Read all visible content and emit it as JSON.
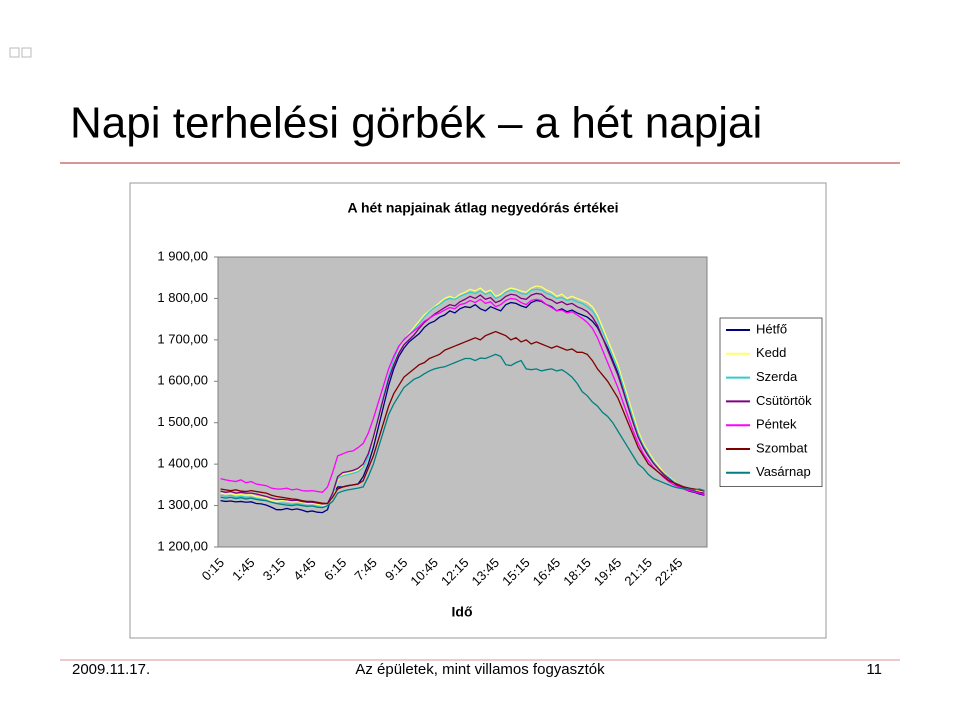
{
  "slide": {
    "title": "Napi terhelési görbék – a hét napjai",
    "date": "2009.11.17.",
    "footer": "Az épületek, mint villamos fogyasztók",
    "page_number": "11"
  },
  "chart_data": {
    "type": "line",
    "title": "A hét napjainak átlag negyedórás értékei",
    "x_label": "Idő",
    "categories": [
      "0:15",
      null,
      null,
      null,
      null,
      null,
      "1:45",
      null,
      null,
      null,
      null,
      null,
      "3:15",
      null,
      null,
      null,
      null,
      null,
      "4:45",
      null,
      null,
      null,
      null,
      null,
      "6:15",
      null,
      null,
      null,
      null,
      null,
      "7:45",
      null,
      null,
      null,
      null,
      null,
      "9:15",
      null,
      null,
      null,
      null,
      null,
      "10:45",
      null,
      null,
      null,
      null,
      null,
      "12:15",
      null,
      null,
      null,
      null,
      null,
      "13:45",
      null,
      null,
      null,
      null,
      null,
      "15:15",
      null,
      null,
      null,
      null,
      null,
      "16:45",
      null,
      null,
      null,
      null,
      null,
      "18:15",
      null,
      null,
      null,
      null,
      null,
      "19:45",
      null,
      null,
      null,
      null,
      null,
      "21:15",
      null,
      null,
      null,
      null,
      null,
      "22:45",
      null,
      null,
      null,
      null,
      null
    ],
    "ylim": [
      1200,
      1900
    ],
    "yticks": [
      {
        "value": 1200,
        "label": "1 200,00"
      },
      {
        "value": 1300,
        "label": "1 300,00"
      },
      {
        "value": 1400,
        "label": "1 400,00"
      },
      {
        "value": 1500,
        "label": "1 500,00"
      },
      {
        "value": 1600,
        "label": "1 600,00"
      },
      {
        "value": 1700,
        "label": "1 700,00"
      },
      {
        "value": 1800,
        "label": "1 800,00"
      },
      {
        "value": 1900,
        "label": "1 900,00"
      }
    ],
    "grid": false,
    "legend": "right",
    "plot_background": "#c0c0c0",
    "series": [
      {
        "name": "Hétfő",
        "color": "#000080",
        "values": [
          1312,
          1310,
          1311,
          1309,
          1310,
          1308,
          1309,
          1305,
          1304,
          1301,
          1296,
          1290,
          1290,
          1293,
          1290,
          1292,
          1289,
          1285,
          1287,
          1284,
          1283,
          1290,
          1330,
          1345,
          1345,
          1348,
          1350,
          1352,
          1370,
          1400,
          1440,
          1490,
          1540,
          1590,
          1630,
          1660,
          1680,
          1695,
          1705,
          1715,
          1730,
          1740,
          1745,
          1755,
          1760,
          1770,
          1765,
          1775,
          1780,
          1778,
          1785,
          1775,
          1770,
          1780,
          1775,
          1770,
          1785,
          1790,
          1788,
          1782,
          1778,
          1790,
          1795,
          1793,
          1785,
          1780,
          1770,
          1775,
          1768,
          1772,
          1765,
          1760,
          1755,
          1745,
          1730,
          1705,
          1680,
          1650,
          1620,
          1585,
          1545,
          1505,
          1470,
          1440,
          1420,
          1405,
          1390,
          1375,
          1365,
          1355,
          1345,
          1340,
          1335,
          1332,
          1328,
          1325
        ]
      },
      {
        "name": "Kedd",
        "color": "#ffff66",
        "values": [
          1330,
          1328,
          1329,
          1326,
          1327,
          1325,
          1326,
          1322,
          1320,
          1318,
          1312,
          1310,
          1312,
          1311,
          1309,
          1310,
          1308,
          1305,
          1306,
          1303,
          1301,
          1300,
          1320,
          1360,
          1375,
          1378,
          1380,
          1385,
          1395,
          1420,
          1460,
          1510,
          1560,
          1610,
          1650,
          1680,
          1700,
          1715,
          1730,
          1745,
          1760,
          1770,
          1780,
          1790,
          1800,
          1805,
          1800,
          1810,
          1815,
          1822,
          1818,
          1825,
          1815,
          1820,
          1805,
          1810,
          1820,
          1825,
          1822,
          1818,
          1815,
          1825,
          1830,
          1828,
          1820,
          1815,
          1805,
          1810,
          1800,
          1805,
          1800,
          1795,
          1790,
          1780,
          1760,
          1730,
          1700,
          1670,
          1640,
          1600,
          1560,
          1520,
          1480,
          1450,
          1430,
          1410,
          1395,
          1380,
          1370,
          1360,
          1350,
          1345,
          1340,
          1338,
          1335,
          1330
        ]
      },
      {
        "name": "Szerda",
        "color": "#33cccc",
        "values": [
          1325,
          1322,
          1325,
          1320,
          1322,
          1320,
          1320,
          1317,
          1315,
          1312,
          1308,
          1305,
          1306,
          1305,
          1303,
          1305,
          1302,
          1300,
          1300,
          1298,
          1296,
          1298,
          1325,
          1365,
          1372,
          1375,
          1378,
          1382,
          1392,
          1418,
          1465,
          1515,
          1565,
          1612,
          1652,
          1682,
          1702,
          1712,
          1725,
          1740,
          1755,
          1768,
          1778,
          1785,
          1795,
          1800,
          1798,
          1805,
          1810,
          1815,
          1812,
          1818,
          1810,
          1815,
          1800,
          1805,
          1815,
          1820,
          1818,
          1812,
          1810,
          1820,
          1822,
          1820,
          1812,
          1808,
          1800,
          1802,
          1795,
          1798,
          1792,
          1788,
          1780,
          1770,
          1750,
          1720,
          1690,
          1660,
          1630,
          1590,
          1550,
          1510,
          1472,
          1445,
          1425,
          1405,
          1390,
          1378,
          1368,
          1358,
          1350,
          1342,
          1338,
          1335,
          1332,
          1328
        ]
      },
      {
        "name": "Csütörtök",
        "color": "#800080",
        "values": [
          1335,
          1332,
          1334,
          1330,
          1332,
          1330,
          1330,
          1328,
          1325,
          1322,
          1318,
          1315,
          1315,
          1314,
          1312,
          1313,
          1310,
          1308,
          1308,
          1306,
          1304,
          1305,
          1330,
          1370,
          1380,
          1382,
          1385,
          1390,
          1400,
          1425,
          1465,
          1512,
          1560,
          1605,
          1640,
          1668,
          1688,
          1700,
          1712,
          1728,
          1742,
          1752,
          1762,
          1770,
          1778,
          1785,
          1782,
          1792,
          1798,
          1805,
          1800,
          1808,
          1798,
          1802,
          1790,
          1795,
          1805,
          1810,
          1808,
          1800,
          1798,
          1808,
          1812,
          1810,
          1800,
          1796,
          1788,
          1792,
          1785,
          1788,
          1780,
          1775,
          1768,
          1755,
          1735,
          1705,
          1675,
          1645,
          1615,
          1578,
          1538,
          1500,
          1465,
          1440,
          1420,
          1402,
          1388,
          1375,
          1365,
          1355,
          1348,
          1342,
          1338,
          1335,
          1332,
          1330
        ]
      },
      {
        "name": "Péntek",
        "color": "#ff00ff",
        "values": [
          1365,
          1362,
          1360,
          1358,
          1362,
          1355,
          1358,
          1352,
          1350,
          1348,
          1342,
          1340,
          1340,
          1342,
          1338,
          1340,
          1336,
          1335,
          1336,
          1334,
          1332,
          1345,
          1380,
          1420,
          1425,
          1430,
          1432,
          1440,
          1450,
          1475,
          1510,
          1550,
          1590,
          1630,
          1660,
          1685,
          1700,
          1712,
          1722,
          1732,
          1745,
          1752,
          1760,
          1765,
          1772,
          1778,
          1775,
          1785,
          1788,
          1795,
          1790,
          1798,
          1788,
          1792,
          1780,
          1785,
          1795,
          1800,
          1798,
          1790,
          1785,
          1795,
          1798,
          1795,
          1785,
          1778,
          1770,
          1772,
          1765,
          1768,
          1760,
          1752,
          1742,
          1728,
          1705,
          1675,
          1645,
          1615,
          1585,
          1550,
          1515,
          1480,
          1450,
          1425,
          1408,
          1392,
          1380,
          1368,
          1358,
          1350,
          1345,
          1340,
          1336,
          1333,
          1330,
          1326
        ]
      },
      {
        "name": "Szombat",
        "color": "#800000",
        "values": [
          1340,
          1338,
          1336,
          1338,
          1335,
          1334,
          1336,
          1334,
          1332,
          1330,
          1325,
          1322,
          1320,
          1318,
          1316,
          1315,
          1312,
          1310,
          1310,
          1308,
          1306,
          1305,
          1320,
          1340,
          1345,
          1348,
          1350,
          1352,
          1360,
          1390,
          1420,
          1460,
          1500,
          1540,
          1570,
          1590,
          1610,
          1620,
          1630,
          1640,
          1645,
          1655,
          1660,
          1665,
          1675,
          1680,
          1685,
          1690,
          1695,
          1700,
          1705,
          1700,
          1710,
          1715,
          1720,
          1715,
          1710,
          1700,
          1705,
          1695,
          1700,
          1690,
          1695,
          1690,
          1685,
          1680,
          1685,
          1680,
          1675,
          1678,
          1670,
          1670,
          1665,
          1650,
          1630,
          1615,
          1600,
          1580,
          1560,
          1530,
          1500,
          1470,
          1440,
          1420,
          1400,
          1390,
          1380,
          1370,
          1360,
          1355,
          1350,
          1345,
          1342,
          1340,
          1338,
          1335
        ]
      },
      {
        "name": "Vasárnap",
        "color": "#008080",
        "values": [
          1320,
          1318,
          1320,
          1317,
          1319,
          1316,
          1318,
          1315,
          1313,
          1312,
          1308,
          1305,
          1303,
          1301,
          1300,
          1302,
          1300,
          1298,
          1299,
          1296,
          1295,
          1300,
          1310,
          1330,
          1335,
          1338,
          1340,
          1342,
          1345,
          1370,
          1400,
          1440,
          1480,
          1520,
          1545,
          1565,
          1585,
          1595,
          1605,
          1610,
          1618,
          1625,
          1630,
          1633,
          1635,
          1640,
          1645,
          1650,
          1655,
          1655,
          1650,
          1656,
          1655,
          1660,
          1665,
          1660,
          1640,
          1638,
          1645,
          1650,
          1630,
          1628,
          1630,
          1625,
          1628,
          1630,
          1625,
          1628,
          1620,
          1610,
          1595,
          1575,
          1565,
          1550,
          1540,
          1525,
          1515,
          1500,
          1480,
          1460,
          1440,
          1420,
          1400,
          1390,
          1375,
          1365,
          1360,
          1355,
          1350,
          1345,
          1342,
          1340,
          1340,
          1338,
          1340,
          1336
        ]
      }
    ]
  }
}
